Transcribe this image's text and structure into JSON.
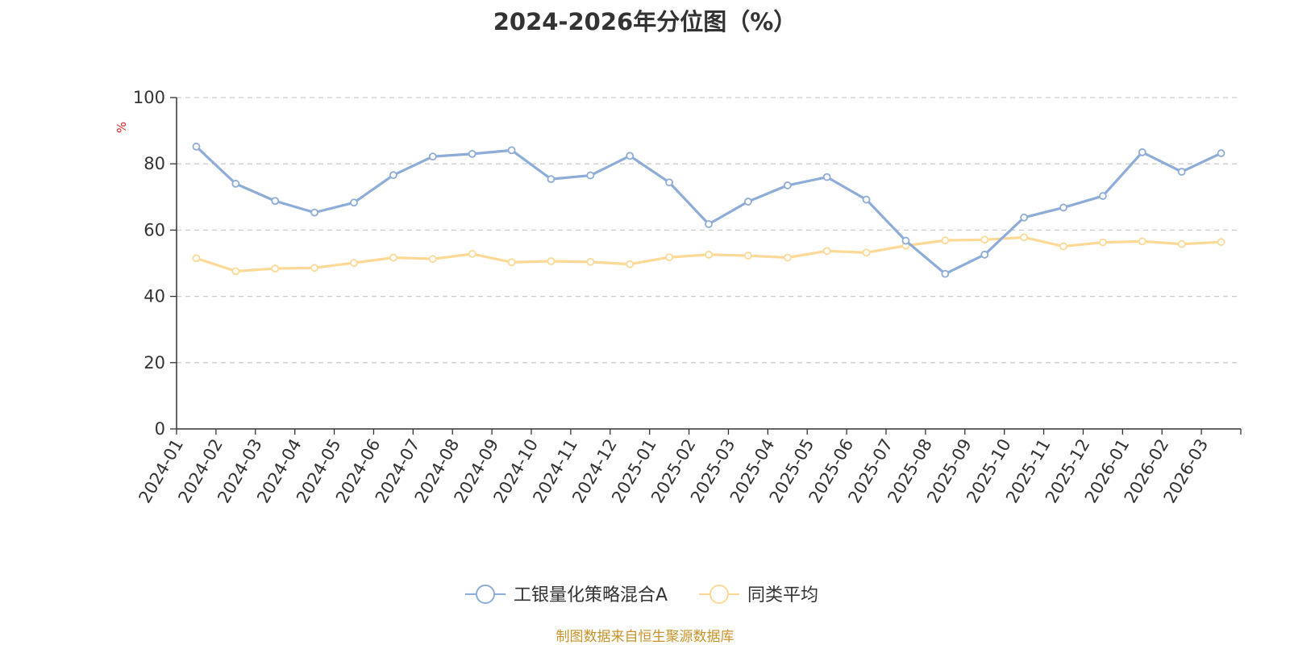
{
  "chart_data": {
    "type": "line",
    "title": "2024-2026年分位图（%）",
    "ylabel": "%",
    "xlabel": "",
    "ylim": [
      0,
      100
    ],
    "yticks": [
      0,
      20,
      40,
      60,
      80,
      100
    ],
    "grid": true,
    "legend_position": "bottom-center",
    "categories": [
      "2024-01",
      "2024-02",
      "2024-03",
      "2024-04",
      "2024-05",
      "2024-06",
      "2024-07",
      "2024-08",
      "2024-09",
      "2024-10",
      "2024-11",
      "2024-12",
      "2025-01",
      "2025-02",
      "2025-03",
      "2025-04",
      "2025-05",
      "2025-06",
      "2025-07",
      "2025-08",
      "2025-09",
      "2025-10",
      "2025-11",
      "2025-12",
      "2026-01",
      "2026-02",
      "2026-03"
    ],
    "series": [
      {
        "name": "工银量化策略混合A",
        "color": "#8eacd8",
        "values": [
          85.2,
          74.0,
          68.8,
          65.3,
          68.3,
          76.6,
          82.2,
          83.0,
          84.1,
          75.4,
          76.5,
          82.4,
          74.4,
          61.8,
          68.6,
          73.5,
          76.0,
          69.2,
          56.8,
          46.8,
          52.6,
          63.8,
          66.8,
          70.3,
          83.5,
          77.6,
          83.2
        ]
      },
      {
        "name": "同类平均",
        "color": "#fcd996",
        "values": [
          51.5,
          47.6,
          48.4,
          48.6,
          50.1,
          51.7,
          51.3,
          52.8,
          50.3,
          50.6,
          50.4,
          49.7,
          51.8,
          52.6,
          52.3,
          51.7,
          53.7,
          53.2,
          55.3,
          56.9,
          57.1,
          57.8,
          55.1,
          56.3,
          56.6,
          55.8,
          56.4
        ]
      }
    ]
  },
  "footer": {
    "source": "制图数据来自恒生聚源数据库"
  }
}
